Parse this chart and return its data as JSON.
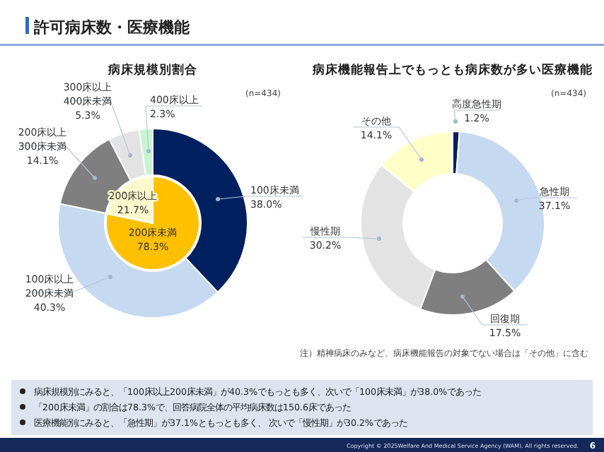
{
  "chart_data": [
    {
      "type": "donut",
      "title": "病床規模別割合",
      "categories": [
        "100床未満",
        "100床以上\n200床未満",
        "200床以上\n300床未満",
        "300床以上\n400床未満",
        "400床以上"
      ],
      "values": [
        38.0,
        40.3,
        14.1,
        5.3,
        2.3
      ],
      "value_labels": [
        "38.0%",
        "40.3%",
        "14.1%",
        "5.3%",
        "2.3%"
      ],
      "colors": [
        "#002060",
        "#c5d9f1",
        "#7f7f7f",
        "#e3e3e3",
        "#c6f5d0"
      ],
      "annotations": [
        "(n=434)"
      ]
    },
    {
      "type": "pie",
      "categories": [
        "200床未満",
        "200床以上"
      ],
      "values": [
        78.3,
        21.7
      ],
      "value_labels": [
        "78.3%",
        "21.7%"
      ],
      "colors": [
        "#ffc000",
        "#fff9cc"
      ]
    },
    {
      "type": "donut",
      "title": "病床機能報告上でもっとも病床数が多い医療機能",
      "categories": [
        "高度急性期",
        "急性期",
        "回復期",
        "慢性期",
        "その他"
      ],
      "values": [
        1.2,
        37.1,
        17.5,
        30.2,
        14.1
      ],
      "value_labels": [
        "1.2%",
        "37.1%",
        "17.5%",
        "30.2%",
        "14.1%"
      ],
      "colors": [
        "#002060",
        "#c5d9f1",
        "#7f7f7f",
        "#e3e3e3",
        "#ffffc8"
      ],
      "annotations": [
        "(n=434)",
        "注）精神病床のみなど、病床機能報告の対象でない場合は「その他」に含む"
      ]
    },
    {
      "type": "other",
      "title": "許可病床数・医療機能",
      "annotations": [
        "病床規模別にみると、「100床以上200床未満」が40.3%でもっとも多く、次いで「100床未満」が38.0%であった",
        "「200床未満」の割合は78.3%で、回答病院全体の平均病床数は150.6床であった",
        "医療機能別にみると、「急性期」が37.1%ともっとも多く、 次いで「慢性期」が30.2%であった",
        "Copyright © 2025Welfare And Medical Service Agency (WAM). All rights reserved.",
        "6"
      ]
    }
  ]
}
